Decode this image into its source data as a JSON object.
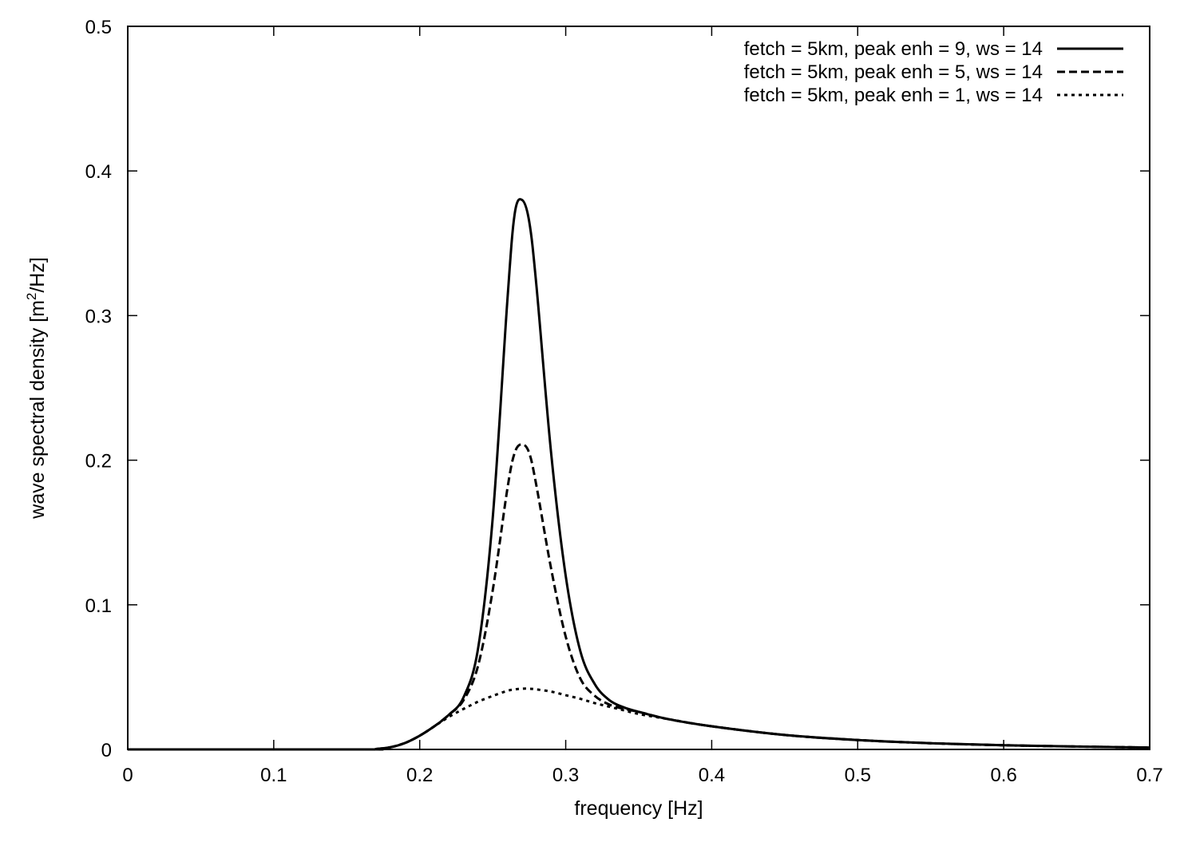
{
  "chart_data": {
    "type": "line",
    "title": "",
    "xlabel": "frequency [Hz]",
    "ylabel": "wave spectral density [m",
    "ylabel_sup": "2",
    "ylabel_suffix": "/Hz]",
    "xlim": [
      0,
      0.7
    ],
    "ylim": [
      0,
      0.5
    ],
    "xticks": [
      0,
      0.1,
      0.2,
      0.3,
      0.4,
      0.5,
      0.6,
      0.7
    ],
    "yticks": [
      0,
      0.1,
      0.2,
      0.3,
      0.4,
      0.5
    ],
    "xtick_labels": [
      "0",
      "0.1",
      "0.2",
      "0.3",
      "0.4",
      "0.5",
      "0.6",
      "0.7"
    ],
    "ytick_labels": [
      "0",
      "0.1",
      "0.2",
      "0.3",
      "0.4",
      "0.5"
    ],
    "grid": false,
    "legend_position": "top-right",
    "x": [
      0,
      0.16,
      0.17,
      0.18,
      0.19,
      0.2,
      0.21,
      0.22,
      0.23,
      0.24,
      0.25,
      0.26,
      0.265,
      0.27,
      0.275,
      0.28,
      0.29,
      0.3,
      0.31,
      0.32,
      0.33,
      0.34,
      0.35,
      0.37,
      0.4,
      0.45,
      0.5,
      0.55,
      0.6,
      0.65,
      0.7
    ],
    "series": [
      {
        "name": "fetch = 5km, peak enh = 9, ws = 14",
        "style": "solid",
        "values": [
          0,
          0,
          0.0003,
          0.0015,
          0.0045,
          0.0095,
          0.016,
          0.024,
          0.036,
          0.07,
          0.16,
          0.31,
          0.37,
          0.38,
          0.365,
          0.32,
          0.205,
          0.12,
          0.068,
          0.045,
          0.034,
          0.029,
          0.026,
          0.021,
          0.016,
          0.01,
          0.0065,
          0.0043,
          0.0029,
          0.002,
          0.0013
        ]
      },
      {
        "name": "fetch = 5km, peak enh = 5, ws = 14",
        "style": "dashed",
        "values": [
          0,
          0,
          0.0003,
          0.0015,
          0.0045,
          0.0095,
          0.016,
          0.024,
          0.034,
          0.058,
          0.11,
          0.18,
          0.205,
          0.211,
          0.205,
          0.182,
          0.125,
          0.078,
          0.049,
          0.037,
          0.031,
          0.028,
          0.026,
          0.021,
          0.016,
          0.01,
          0.0065,
          0.0043,
          0.0029,
          0.002,
          0.0013
        ]
      },
      {
        "name": "fetch = 5km, peak enh = 1, ws = 14",
        "style": "dotted",
        "values": [
          0,
          0,
          0.0003,
          0.0015,
          0.0045,
          0.0095,
          0.016,
          0.0225,
          0.028,
          0.033,
          0.037,
          0.0405,
          0.0415,
          0.042,
          0.042,
          0.0415,
          0.04,
          0.0375,
          0.035,
          0.032,
          0.0295,
          0.027,
          0.0245,
          0.021,
          0.016,
          0.01,
          0.0065,
          0.0043,
          0.0029,
          0.002,
          0.0013
        ]
      }
    ]
  }
}
